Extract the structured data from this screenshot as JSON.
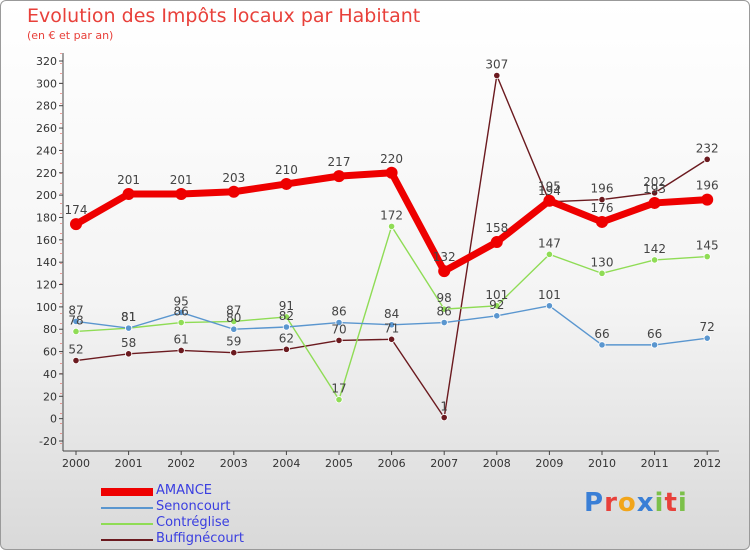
{
  "title": "Evolution des Impôts locaux par Habitant",
  "subtitle": "(en € et par an)",
  "logo": {
    "text": "Proxiti",
    "colors": [
      "#3a7fd6",
      "#e8403a",
      "#f2a51a",
      "#3a7fd6",
      "#7cc04a",
      "#e8403a",
      "#7cc04a"
    ]
  },
  "chart_data": {
    "type": "line",
    "title": "Evolution des Impôts locaux par Habitant",
    "ylabel": "(en € et par an)",
    "ylim": [
      -20,
      320
    ],
    "ytick_step": 20,
    "grid": false,
    "categories": [
      "2000",
      "2001",
      "2002",
      "2003",
      "2004",
      "2005",
      "2006",
      "2007",
      "2008",
      "2009",
      "2010",
      "2011",
      "2012"
    ],
    "series": [
      {
        "name": "Buffignécourt",
        "color": "#6b1a1f",
        "weight": "thin",
        "values": [
          52,
          58,
          61,
          59,
          62,
          70,
          71,
          1,
          307,
          194,
          196,
          202,
          232
        ],
        "labels": [
          "52",
          "58",
          "61",
          "59",
          "62",
          "70",
          "71",
          "1",
          "307",
          "194",
          "196",
          "202",
          "232"
        ]
      },
      {
        "name": "Contréglise",
        "color": "#8fdc55",
        "weight": "thin",
        "values": [
          78,
          81,
          86,
          87,
          91,
          17,
          172,
          98,
          101,
          147,
          130,
          142,
          145
        ],
        "labels": [
          "78",
          "81",
          "86",
          "87",
          "91",
          "17",
          "172",
          "98",
          "101",
          "147",
          "130",
          "142",
          "145"
        ]
      },
      {
        "name": "Senoncourt",
        "color": "#5a96cf",
        "weight": "thin",
        "values": [
          87,
          81,
          95,
          80,
          82,
          86,
          84,
          86,
          92,
          101,
          66,
          66,
          72
        ],
        "labels": [
          "87",
          "81",
          "95",
          "80",
          "82",
          "86",
          "84",
          "86",
          "92",
          "101",
          "66",
          "66",
          "72"
        ]
      },
      {
        "name": "AMANCE",
        "color": "#ee0000",
        "weight": "thick",
        "values": [
          174,
          201,
          201,
          203,
          210,
          217,
          220,
          132,
          158,
          195,
          176,
          193,
          196
        ],
        "labels": [
          "174",
          "201",
          "201",
          "203",
          "210",
          "217",
          "220",
          "132",
          "158",
          "195",
          "176",
          "193",
          "196"
        ]
      }
    ],
    "legend": [
      "AMANCE",
      "Senoncourt",
      "Contréglise",
      "Buffignécourt"
    ],
    "legend_position": "bottom-left"
  }
}
